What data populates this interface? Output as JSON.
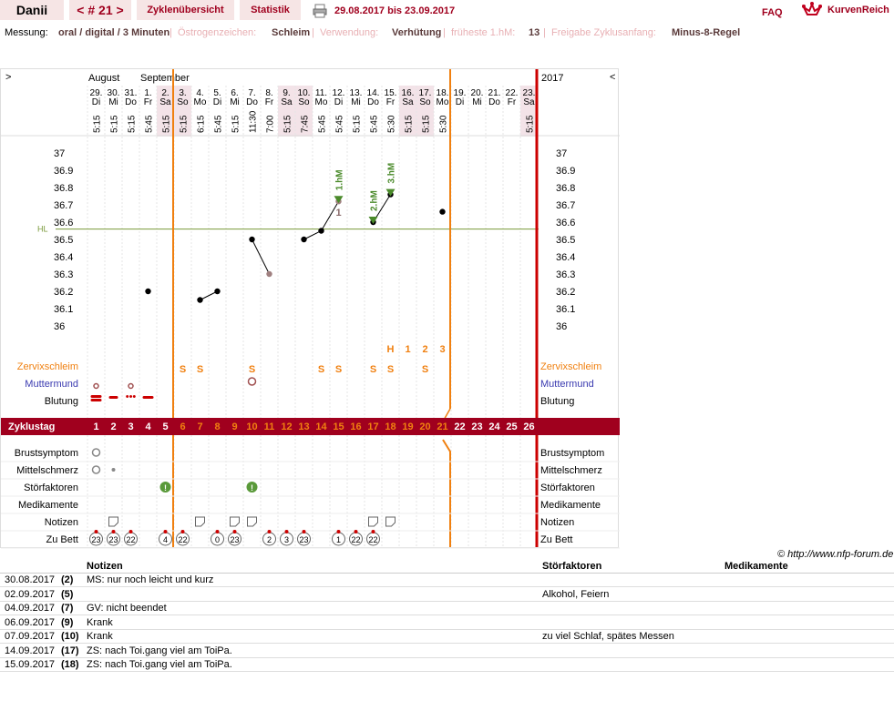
{
  "header": {
    "user": "Danii",
    "cycle_nav": "< # 21 >",
    "tab_overview": "Zyklenübersicht",
    "tab_stats": "Statistik",
    "date_range": "29.08.2017 bis 23.09.2017",
    "faq": "FAQ",
    "brand": "KurvenReich",
    "icons": [
      "print-icon",
      "crown-logo"
    ]
  },
  "meta": {
    "messung_label": "Messung:",
    "messung_value": "oral / digital / 3 Minuten",
    "oestrogen_label": "Östrogenzeichen:",
    "oestrogen_value": "Schleim",
    "verwendung_label": "Verwendung:",
    "verwendung_value": "Verhütung",
    "hm_label": "früheste 1.hM:",
    "hm_value": "13",
    "freigabe_label": "Freigabe Zyklusanfang:",
    "freigabe_value": "Minus-8-Regel"
  },
  "chart": {
    "nav_left": ">",
    "nav_right": "<",
    "year": "2017",
    "month1": "August",
    "month2": "September",
    "days": [
      {
        "d": "29.",
        "w": "Di",
        "t": "5:15"
      },
      {
        "d": "30.",
        "w": "Mi",
        "t": "5:15"
      },
      {
        "d": "31.",
        "w": "Do",
        "t": "5:15"
      },
      {
        "d": "1.",
        "w": "Fr",
        "t": "5:45"
      },
      {
        "d": "2.",
        "w": "Sa",
        "t": "5:15"
      },
      {
        "d": "3.",
        "w": "So",
        "t": "5:15"
      },
      {
        "d": "4.",
        "w": "Mo",
        "t": "6:15"
      },
      {
        "d": "5.",
        "w": "Di",
        "t": "5:45"
      },
      {
        "d": "6.",
        "w": "Mi",
        "t": "5:15"
      },
      {
        "d": "7.",
        "w": "Do",
        "t": "11:30"
      },
      {
        "d": "8.",
        "w": "Fr",
        "t": "7:00"
      },
      {
        "d": "9.",
        "w": "Sa",
        "t": "5:15"
      },
      {
        "d": "10.",
        "w": "So",
        "t": "7:45"
      },
      {
        "d": "11.",
        "w": "Mo",
        "t": "5:45"
      },
      {
        "d": "12.",
        "w": "Di",
        "t": "5:45"
      },
      {
        "d": "13.",
        "w": "Mi",
        "t": "5:15"
      },
      {
        "d": "14.",
        "w": "Do",
        "t": "5:45"
      },
      {
        "d": "15.",
        "w": "Fr",
        "t": "5:30"
      },
      {
        "d": "16.",
        "w": "Sa",
        "t": "5:15"
      },
      {
        "d": "17.",
        "w": "So",
        "t": "5:15"
      },
      {
        "d": "18.",
        "w": "Mo",
        "t": "5:30"
      },
      {
        "d": "19.",
        "w": "Di",
        "t": ""
      },
      {
        "d": "20.",
        "w": "Mi",
        "t": ""
      },
      {
        "d": "21.",
        "w": "Do",
        "t": ""
      },
      {
        "d": "22.",
        "w": "Fr",
        "t": ""
      },
      {
        "d": "23.",
        "w": "Sa",
        "t": "5:15"
      }
    ],
    "temp_ticks": [
      "37",
      "36.9",
      "36.8",
      "36.7",
      "36.6",
      "36.5",
      "36.4",
      "36.3",
      "36.2",
      "36.1",
      "36"
    ],
    "hl_label": "HL",
    "hl_value": 36.56,
    "temps": [
      null,
      null,
      null,
      36.2,
      null,
      null,
      36.15,
      36.2,
      null,
      36.5,
      36.3,
      null,
      36.5,
      36.55,
      36.72,
      null,
      36.6,
      36.76,
      null,
      null,
      36.66,
      null,
      null,
      null,
      null,
      null
    ],
    "ausklammer": [
      4,
      10,
      14
    ],
    "ausklammer_labels": {
      "4": "6",
      "14": "1"
    },
    "hm_markers": [
      {
        "day": 15,
        "label": "1.hM"
      },
      {
        "day": 17,
        "label": "2.hM"
      },
      {
        "day": 18,
        "label": "3.hM"
      }
    ],
    "cervix_counts": [
      "H",
      "1",
      "2",
      "3"
    ],
    "rows": {
      "zervix": "Zervixschleim",
      "muttermund": "Muttermund",
      "blutung": "Blutung",
      "zyklustag": "Zyklustag",
      "brust": "Brustsymptom",
      "mittel": "Mittelschmerz",
      "stoer": "Störfaktoren",
      "medi": "Medikamente",
      "notizen": "Notizen",
      "bett": "Zu Bett"
    },
    "zyklustage": [
      "1",
      "2",
      "3",
      "4",
      "5",
      "6",
      "7",
      "8",
      "9",
      "10",
      "11",
      "12",
      "13",
      "14",
      "15",
      "16",
      "17",
      "18",
      "19",
      "20",
      "21",
      "22",
      "23",
      "24",
      "25",
      "26"
    ],
    "bett": [
      "23",
      "23",
      "22",
      "",
      "4",
      "22",
      "",
      "0",
      "23",
      "",
      "2",
      "3",
      "23",
      "",
      "1",
      "22",
      "22",
      "",
      "",
      "",
      "",
      "",
      "",
      "",
      "",
      ""
    ],
    "copyright": "© http://www.nfp-forum.de"
  },
  "notes": {
    "headers": [
      "Notizen",
      "Störfaktoren",
      "Medikamente"
    ],
    "rows": [
      {
        "date": "30.08.2017",
        "day": "(2)",
        "note": "MS: nur noch leicht und kurz",
        "stoer": ""
      },
      {
        "date": "02.09.2017",
        "day": "(5)",
        "note": "",
        "stoer": "Alkohol, Feiern"
      },
      {
        "date": "04.09.2017",
        "day": "(7)",
        "note": "GV: nicht beendet",
        "stoer": ""
      },
      {
        "date": "06.09.2017",
        "day": "(9)",
        "note": "Krank",
        "stoer": ""
      },
      {
        "date": "07.09.2017",
        "day": "(10)",
        "note": "Krank",
        "stoer": "zu viel Schlaf, spätes Messen"
      },
      {
        "date": "14.09.2017",
        "day": "(17)",
        "note": "ZS: nach Toi.gang viel am ToiPa.",
        "stoer": ""
      },
      {
        "date": "15.09.2017",
        "day": "(18)",
        "note": "ZS: nach Toi.gang viel am ToiPa.",
        "stoer": ""
      }
    ]
  }
}
